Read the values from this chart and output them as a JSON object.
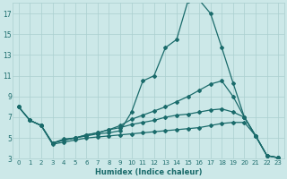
{
  "xlabel": "Humidex (Indice chaleur)",
  "bg_color": "#cce8e8",
  "grid_color": "#aacfcf",
  "line_color": "#1a6b6b",
  "xlim": [
    -0.5,
    23.5
  ],
  "ylim": [
    3,
    18
  ],
  "xticks": [
    0,
    1,
    2,
    3,
    4,
    5,
    6,
    7,
    8,
    9,
    10,
    11,
    12,
    13,
    14,
    15,
    16,
    17,
    18,
    19,
    20,
    21,
    22,
    23
  ],
  "yticks": [
    3,
    5,
    7,
    9,
    11,
    13,
    15,
    17
  ],
  "line1_x": [
    0,
    1,
    2,
    3,
    4,
    5,
    6,
    7,
    8,
    9,
    10,
    11,
    12,
    13,
    14,
    15,
    16,
    17,
    18,
    19,
    20,
    21,
    22,
    23
  ],
  "line1_y": [
    8.0,
    6.7,
    6.2,
    4.5,
    4.8,
    5.0,
    5.2,
    5.4,
    5.5,
    5.7,
    7.5,
    10.5,
    11.0,
    13.7,
    14.5,
    18.2,
    18.3,
    17.0,
    13.7,
    10.3,
    7.0,
    5.2,
    3.3,
    3.1
  ],
  "line2_x": [
    0,
    1,
    2,
    3,
    4,
    5,
    6,
    7,
    8,
    9,
    10,
    11,
    12,
    13,
    14,
    15,
    16,
    17,
    18,
    19,
    20,
    21,
    22,
    23
  ],
  "line2_y": [
    8.0,
    6.7,
    6.2,
    4.5,
    4.8,
    5.0,
    5.3,
    5.5,
    5.8,
    6.2,
    6.8,
    7.2,
    7.6,
    8.0,
    8.5,
    9.0,
    9.6,
    10.2,
    10.5,
    9.0,
    7.0,
    5.2,
    3.3,
    3.1
  ],
  "line3_x": [
    0,
    1,
    2,
    3,
    4,
    5,
    6,
    7,
    8,
    9,
    10,
    11,
    12,
    13,
    14,
    15,
    16,
    17,
    18,
    19,
    20,
    21,
    22,
    23
  ],
  "line3_y": [
    8.0,
    6.7,
    6.2,
    4.5,
    4.9,
    5.0,
    5.3,
    5.5,
    5.8,
    6.0,
    6.3,
    6.5,
    6.7,
    7.0,
    7.2,
    7.3,
    7.5,
    7.7,
    7.8,
    7.5,
    7.0,
    5.2,
    3.3,
    3.1
  ],
  "line4_x": [
    1,
    2,
    3,
    4,
    5,
    6,
    7,
    8,
    9,
    10,
    11,
    12,
    13,
    14,
    15,
    16,
    17,
    18,
    19,
    20,
    21,
    22,
    23
  ],
  "line4_y": [
    6.7,
    6.2,
    4.4,
    4.6,
    4.8,
    5.0,
    5.1,
    5.2,
    5.3,
    5.4,
    5.5,
    5.6,
    5.7,
    5.8,
    5.9,
    6.0,
    6.2,
    6.4,
    6.5,
    6.5,
    5.2,
    3.3,
    3.1
  ]
}
